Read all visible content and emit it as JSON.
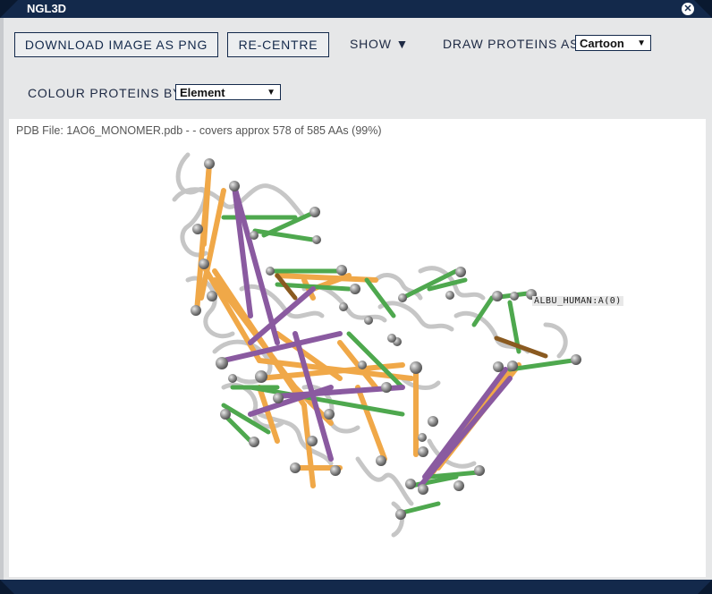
{
  "window": {
    "title": "NGL3D",
    "close_icon": "close-icon"
  },
  "toolbar": {
    "download_label": "DOWNLOAD IMAGE AS PNG",
    "recentre_label": "RE-CENTRE",
    "show_label": "SHOW ▼",
    "draw_proteins_label": "DRAW PROTEINS AS",
    "draw_proteins_value": "Cartoon",
    "colour_proteins_label": "COLOUR PROTEINS BY",
    "colour_proteins_value": "Element"
  },
  "viewer": {
    "pdb_info": "PDB File: 1AO6_MONOMER.pdb - - covers approx 578 of 585 AAs (99%)",
    "protein_label": "ALBU_HUMAN:A(0)"
  },
  "colors": {
    "titlebar": "#13294b",
    "crosslink_orange": "#f0a848",
    "crosslink_green": "#4ea84e",
    "crosslink_purple": "#8a5aa0",
    "crosslink_brown": "#8a5a20",
    "node_gray": "#909090"
  }
}
